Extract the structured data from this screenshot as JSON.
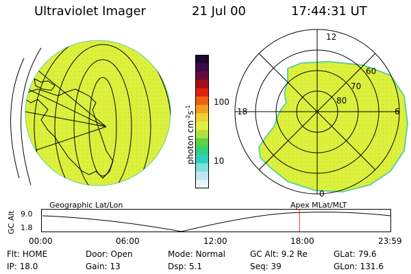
{
  "header": {
    "instrument": "Ultraviolet Imager",
    "date": "21 Jul 00",
    "time": "17:44:31 UT"
  },
  "left_panel": {
    "label": "Geographic Lat/Lon",
    "fill_color": "#dcf03c"
  },
  "right_panel": {
    "label": "Apex MLat/MLT",
    "mlt_labels": [
      "12",
      "18",
      "6",
      "0"
    ],
    "lat_labels": [
      "60",
      "70",
      "80"
    ],
    "fill_color": "#dcf03c"
  },
  "colorbar": {
    "unit": "photon cm",
    "unit_exp1": "-2",
    "unit_mid": "s",
    "unit_exp2": "-1",
    "ticks": [
      "100",
      "10"
    ],
    "colors": [
      "#1a0a2e",
      "#3a0a4a",
      "#6a0a3a",
      "#a0101a",
      "#e02010",
      "#f06010",
      "#f0a020",
      "#f0d030",
      "#e0f040",
      "#b0e040",
      "#60d040",
      "#30d080",
      "#30d0c0",
      "#80e0e0",
      "#c0e8f0",
      "#e8f4f8"
    ]
  },
  "altitude_plot": {
    "ylabel": "GC Alt",
    "yticks": [
      "9.0",
      "1.8"
    ],
    "xticks": [
      "00:00",
      "06:00",
      "12:00",
      "18:00",
      "23:59"
    ],
    "marker_color": "#d02020",
    "marker_time_fraction": 0.739
  },
  "status": {
    "flt_label": "Flt:",
    "flt_value": "HOME",
    "door_label": "Door:",
    "door_value": "Open",
    "mode_label": "Mode:",
    "mode_value": "Normal",
    "gcalt_label": "GC Alt:",
    "gcalt_value": "9.2 Re",
    "glat_label": "GLat:",
    "glat_value": "79.6",
    "ip_label": "IP:",
    "ip_value": "18.0",
    "gain_label": "Gain:",
    "gain_value": "13",
    "dsp_label": "Dsp:",
    "dsp_value": "5.1",
    "seq_label": "Seq:",
    "seq_value": "39",
    "glon_label": "GLon:",
    "glon_value": "131.6"
  }
}
